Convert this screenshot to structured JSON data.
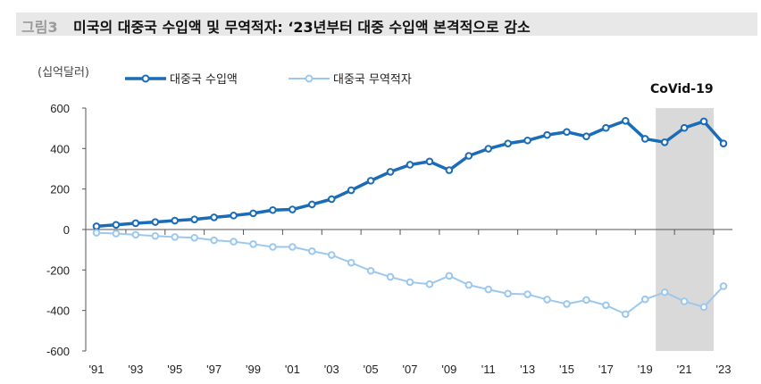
{
  "header": {
    "figure_label": "그림3",
    "title": "미국의 대중국 수입액 및 무역적자: ‘23년부터 대중 수입액 본격적으로 감소"
  },
  "chart_data": {
    "type": "line",
    "unit_label": "(십억달러)",
    "x": [
      1991,
      1992,
      1993,
      1994,
      1995,
      1996,
      1997,
      1998,
      1999,
      2000,
      2001,
      2002,
      2003,
      2004,
      2005,
      2006,
      2007,
      2008,
      2009,
      2010,
      2011,
      2012,
      2013,
      2014,
      2015,
      2016,
      2017,
      2018,
      2019,
      2020,
      2021,
      2022,
      2023
    ],
    "x_tick_labels": [
      "'91",
      "'93",
      "'95",
      "'97",
      "'99",
      "'01",
      "'03",
      "'05",
      "'07",
      "'09",
      "'11",
      "'13",
      "'15",
      "'17",
      "'19",
      "'21",
      "'23"
    ],
    "y_ticks": [
      600,
      400,
      200,
      0,
      -200,
      -400,
      -600
    ],
    "ylim": [
      -600,
      600
    ],
    "legend_placement": "top",
    "series": [
      {
        "name": "대중국 수입액",
        "color": "#1a6bb8",
        "values": [
          16,
          23,
          31,
          37,
          44,
          50,
          60,
          69,
          80,
          96,
          99,
          124,
          150,
          194,
          241,
          285,
          320,
          336,
          293,
          364,
          399,
          425,
          440,
          467,
          482,
          460,
          502,
          537,
          448,
          431,
          502,
          534,
          425
        ]
      },
      {
        "name": "대중국 무역적자",
        "color": "#9cc8ee",
        "values": [
          -16,
          -20,
          -26,
          -32,
          -37,
          -41,
          -53,
          -60,
          -72,
          -86,
          -86,
          -107,
          -126,
          -164,
          -204,
          -234,
          -260,
          -270,
          -229,
          -274,
          -296,
          -317,
          -320,
          -346,
          -368,
          -348,
          -374,
          -418,
          -345,
          -310,
          -355,
          -383,
          -280
        ]
      }
    ],
    "annotation": {
      "label": "CoVid-19",
      "x_range": [
        2020,
        2022
      ],
      "color": "#d9d9d9"
    }
  }
}
